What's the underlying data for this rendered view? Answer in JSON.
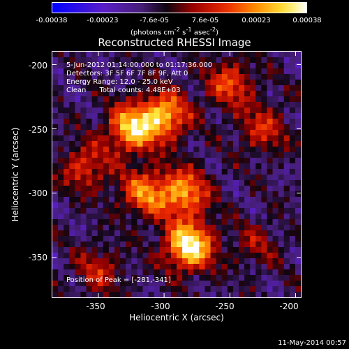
{
  "chart_data": {
    "type": "heatmap",
    "title": "Reconstructed RHESSI Image",
    "xlabel": "Heliocentric X (arcsec)",
    "ylabel": "Heliocentric Y (arcsec)",
    "xlim": [
      -385,
      -196
    ],
    "ylim": [
      -381,
      -190
    ],
    "x_ticks": [
      "-350",
      "-300",
      "-250",
      "-200"
    ],
    "x_tick_values": [
      -350,
      -300,
      -250,
      -200
    ],
    "y_ticks": [
      "-200",
      "-250",
      "-300",
      "-350"
    ],
    "y_tick_values": [
      -200,
      -250,
      -300,
      -350
    ],
    "colorbar": {
      "ticks": [
        "-0.00038",
        "-0.00023",
        "-7.6e-05",
        "7.6e-05",
        "0.00023",
        "0.00038"
      ],
      "tick_values": [
        -0.00038,
        -0.00023,
        -7.6e-05,
        7.6e-05,
        0.00023,
        0.00038
      ],
      "unit_prefix": "(photons cm",
      "unit_exp1": "-2",
      "unit_mid": " s",
      "unit_exp2": "-1",
      "unit_mid2": " asec",
      "unit_exp3": "-2",
      "unit_suffix": ")",
      "colormap": "rainbow-blue-to-white"
    },
    "annotations": [
      "5-Jun-2012 01:14:00.000 to 01:17:36.000",
      "Detectors: 3F 5F 6F 7F 8F 9F, Att 0",
      "Energy Range: 12.0 - 25.0 keV",
      "Clean      Total counts: 4.48E+03"
    ],
    "peak_label": "Position of Peak = [-281,-341]",
    "peak": [
      -281,
      -341
    ],
    "bright_regions": [
      {
        "x": -325,
        "y": -250,
        "level": 0.8
      },
      {
        "x": -300,
        "y": -240,
        "level": 0.75
      },
      {
        "x": -285,
        "y": -300,
        "level": 0.7
      },
      {
        "x": -281,
        "y": -341,
        "level": 1.0
      },
      {
        "x": -315,
        "y": -300,
        "level": 0.6
      },
      {
        "x": -360,
        "y": -280,
        "level": 0.45
      },
      {
        "x": -250,
        "y": -215,
        "level": 0.5
      },
      {
        "x": -225,
        "y": -250,
        "level": 0.4
      },
      {
        "x": -350,
        "y": -360,
        "level": 0.35
      },
      {
        "x": -230,
        "y": -340,
        "level": 0.25
      }
    ]
  },
  "footer": {
    "date_stamp": "11-May-2014 00:57"
  }
}
